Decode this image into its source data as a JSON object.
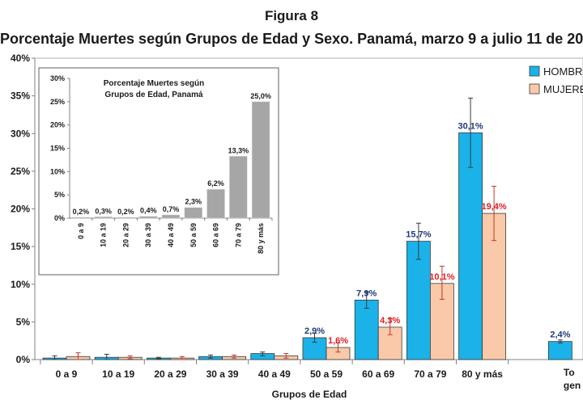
{
  "figure_label": "Figura 8",
  "title": "Porcentaje Muertes según Grupos de Edad y Sexo. Panamá, marzo 9 a julio 11 de 20",
  "chart_data": [
    {
      "type": "bar",
      "title": "Porcentaje Muertes según Grupos de Edad y Sexo. Panamá, marzo 9 a julio 11 de 20",
      "xlabel": "Grupos de Edad",
      "ylabel": "",
      "ylim": [
        0,
        40
      ],
      "yticks": [
        "0%",
        "5%",
        "10%",
        "15%",
        "20%",
        "25%",
        "30%",
        "35%",
        "40%"
      ],
      "categories": [
        "0 a 9",
        "10 a 19",
        "20 a 29",
        "30 a 39",
        "40 a 49",
        "50 a 59",
        "60 a 69",
        "70 a 79",
        "80 y más",
        "To gen"
      ],
      "legend_position": "top-right",
      "grid": false,
      "series": [
        {
          "name": "HOMBR",
          "color": "#1ab2e8",
          "label_color": "#1f3a7a",
          "values": [
            0.2,
            0.3,
            0.2,
            0.4,
            0.8,
            2.9,
            7.9,
            15.7,
            30.1,
            2.4
          ],
          "labels": [
            "",
            "",
            "",
            "",
            "",
            "2,9%",
            "7,9%",
            "15,7%",
            "30,1%",
            "2,4%"
          ],
          "err_low": [
            0.0,
            0.0,
            0.1,
            0.2,
            0.5,
            2.3,
            6.8,
            13.3,
            25.5,
            2.2
          ],
          "err_high": [
            0.5,
            0.7,
            0.3,
            0.6,
            1.0,
            3.5,
            9.0,
            18.1,
            34.7,
            2.6
          ]
        },
        {
          "name": "MUJERE",
          "color": "#f9c9a9",
          "label_color": "#e31b23",
          "values": [
            0.4,
            0.3,
            0.2,
            0.4,
            0.5,
            1.6,
            4.3,
            10.1,
            19.4,
            null
          ],
          "labels": [
            "",
            "",
            "",
            "",
            "",
            "1,6%",
            "4,3%",
            "10,1%",
            "19,4%",
            ""
          ],
          "err_low": [
            0.0,
            0.1,
            0.0,
            0.2,
            0.2,
            1.0,
            3.3,
            8.0,
            15.8,
            null
          ],
          "err_high": [
            0.9,
            0.5,
            0.4,
            0.6,
            0.8,
            2.2,
            5.4,
            12.4,
            23.0,
            null
          ]
        }
      ]
    },
    {
      "type": "bar",
      "title": "Porcentaje Muertes según Grupos de Edad, Panamá",
      "title_lines": [
        "Porcentaje Muertes según",
        "Grupos de Edad, Panamá"
      ],
      "xlabel": "",
      "ylabel": "",
      "ylim": [
        0,
        30
      ],
      "yticks": [
        "0%",
        "5%",
        "10%",
        "15%",
        "20%",
        "25%",
        "30%"
      ],
      "categories": [
        "0 a 9",
        "10 a 19",
        "20 a 29",
        "30 a 39",
        "40 a 49",
        "50 a 59",
        "60 a 69",
        "70 a 79",
        "80 y más"
      ],
      "values": [
        0.2,
        0.3,
        0.2,
        0.4,
        0.7,
        2.3,
        6.2,
        13.3,
        25.0
      ],
      "labels": [
        "0,2%",
        "0,3%",
        "0,2%",
        "0,4%",
        "0,7%",
        "2,3%",
        "6,2%",
        "13,3%",
        "25,0%"
      ],
      "color": "#a6a6a6"
    }
  ]
}
